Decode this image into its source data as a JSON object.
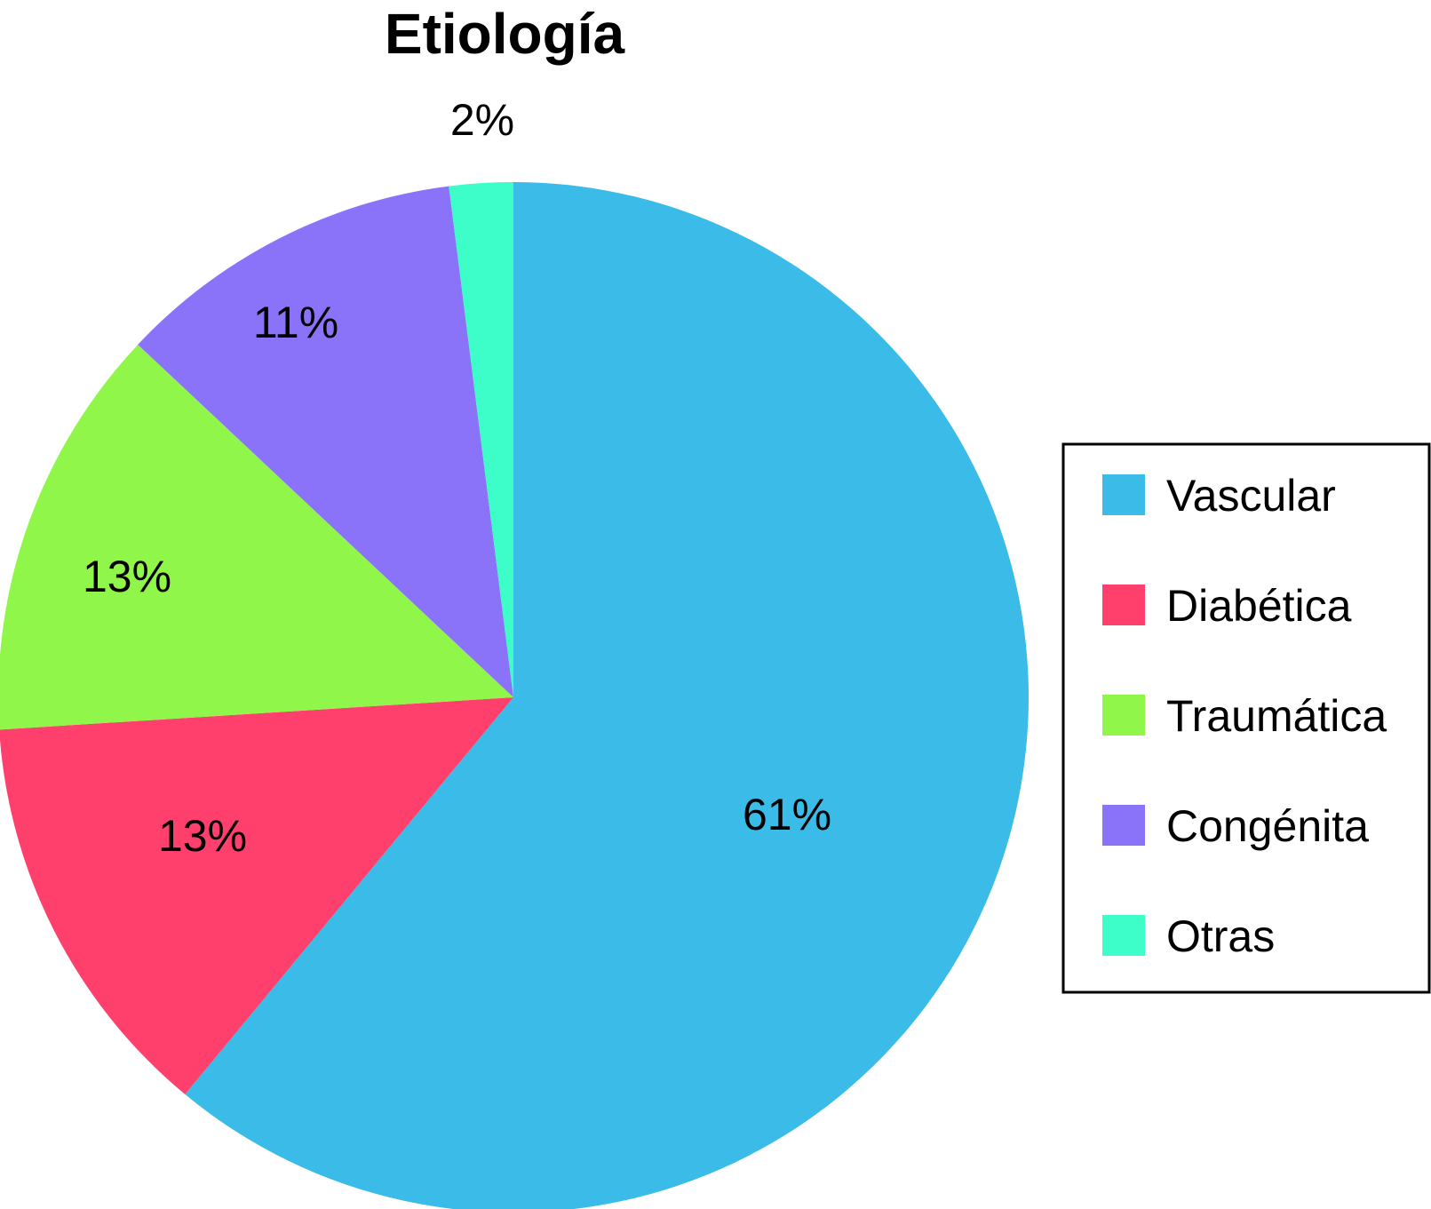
{
  "chart_data": {
    "type": "pie",
    "title": "Etiología",
    "categories": [
      "Vascular",
      "Diabética",
      "Traumática",
      "Congénita",
      "Otras"
    ],
    "values": [
      61,
      13,
      13,
      11,
      2
    ],
    "labels": [
      "61%",
      "13%",
      "13%",
      "11%",
      "2%"
    ],
    "colors": [
      "#3bbbe8",
      "#ff3f6c",
      "#90f64a",
      "#8a73f8",
      "#3dfdc8"
    ],
    "start_angle": "12 o'clock",
    "direction": "clockwise",
    "legend": {
      "placement": "right",
      "entries": [
        "Vascular",
        "Diabética",
        "Traumática",
        "Congénita",
        "Otras"
      ]
    }
  }
}
